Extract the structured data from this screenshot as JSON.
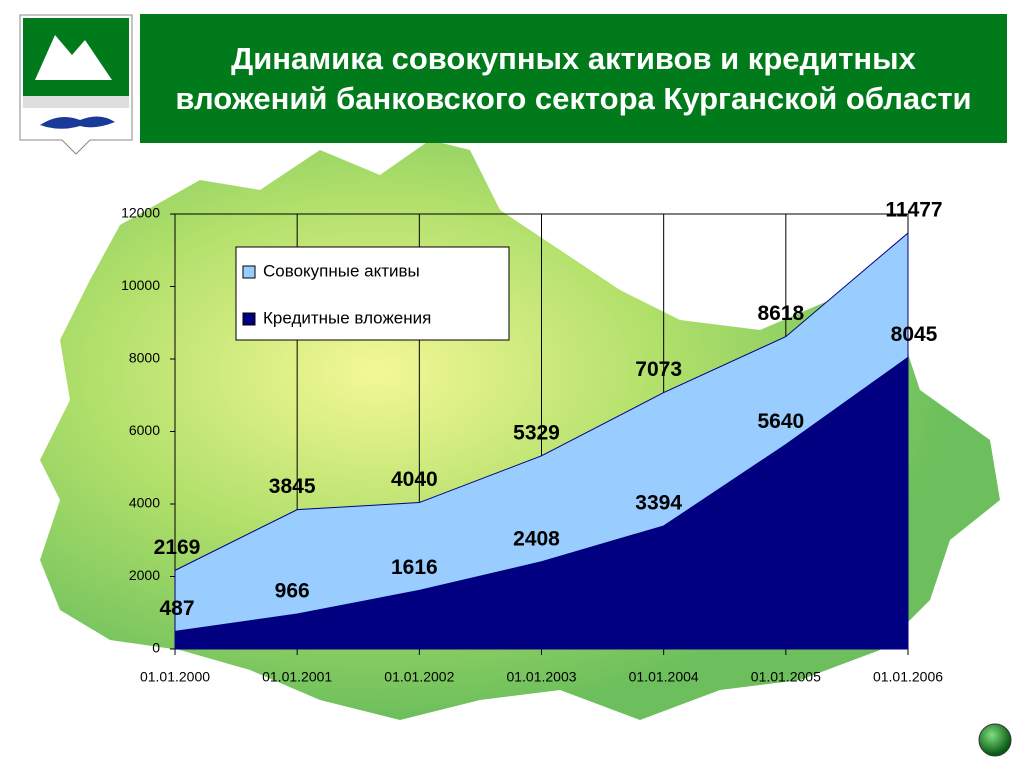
{
  "chart_data": {
    "type": "area",
    "title": "Динамика совокупных активов и кредитных вложений банковского сектора Курганской области",
    "categories": [
      "01.01.2000",
      "01.01.2001",
      "01.01.2002",
      "01.01.2003",
      "01.01.2004",
      "01.01.2005",
      "01.01.2006"
    ],
    "series": [
      {
        "name": "Совокупные активы",
        "color": "#99ccff",
        "values": [
          2169,
          3845,
          4040,
          5329,
          7073,
          8618,
          11477
        ]
      },
      {
        "name": "Кредитные вложения",
        "color": "#000080",
        "values": [
          487,
          966,
          1616,
          2408,
          3394,
          5640,
          8045
        ]
      }
    ],
    "ylim": [
      0,
      12000
    ],
    "yticks": [
      0,
      2000,
      4000,
      6000,
      8000,
      10000,
      12000
    ]
  }
}
